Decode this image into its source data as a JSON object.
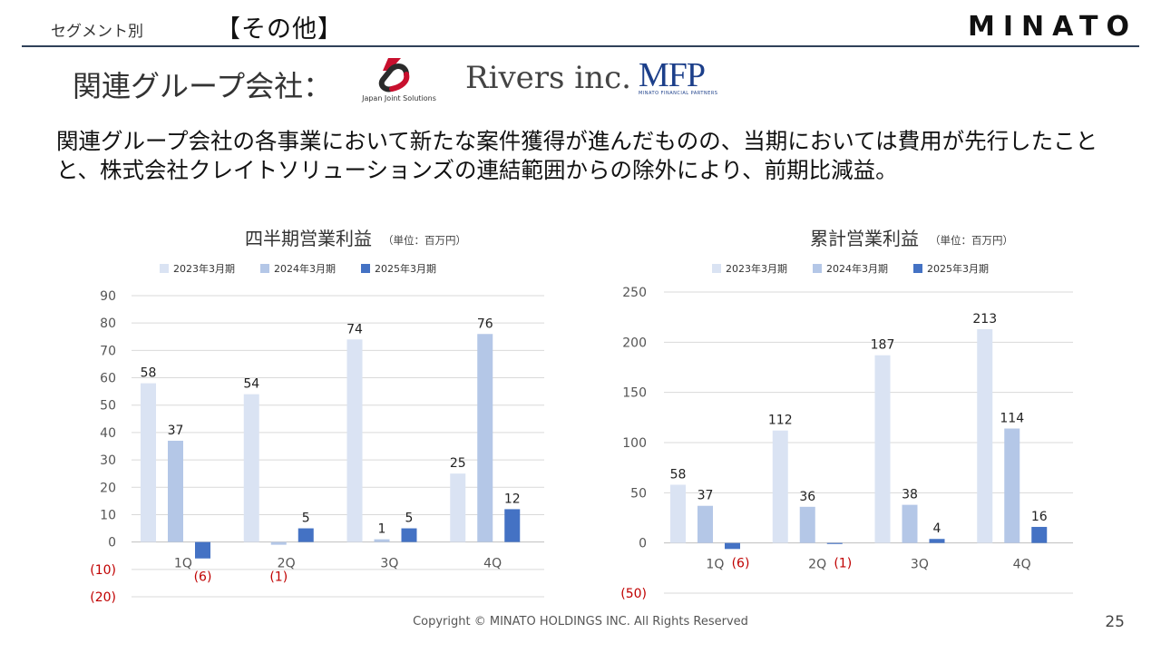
{
  "header": {
    "segment_label": "セグメント別",
    "section_title": "【その他】",
    "brand": "MINATO"
  },
  "group": {
    "label": "関連グループ会社：",
    "logos": {
      "jjs": "Japan Joint Solutions",
      "rivers": "Rivers inc.",
      "mfp_mark": "MFP",
      "mfp_sub": "MINATO FINANCIAL PARTNERS"
    }
  },
  "description": "関連グループ会社の各事業において新たな案件獲得が進んだものの、当期においては費用が先行したことと、株式会社クレイトソリューションズの連結範囲からの除外により、前期比減益。",
  "footer": {
    "copyright": "Copyright © MINATO HOLDINGS INC. All Rights Reserved",
    "page": "25"
  },
  "chart_data": [
    {
      "id": "quarterly",
      "type": "bar",
      "title": "四半期営業利益",
      "unit": "（単位：百万円）",
      "categories": [
        "1Q",
        "2Q",
        "3Q",
        "4Q"
      ],
      "series": [
        {
          "name": "2023年3月期",
          "color": "#dae3f3",
          "values": [
            58,
            54,
            74,
            25
          ]
        },
        {
          "name": "2024年3月期",
          "color": "#b4c7e7",
          "values": [
            37,
            -1,
            1,
            76
          ]
        },
        {
          "name": "2025年3月期",
          "color": "#4472c4",
          "values": [
            -6,
            5,
            5,
            12
          ]
        }
      ],
      "data_labels": [
        [
          "58",
          "54",
          "74",
          "25"
        ],
        [
          "37",
          "(1)",
          "1",
          "76"
        ],
        [
          "(6)",
          "5",
          "5",
          "12"
        ]
      ],
      "ylim": [
        -20,
        90
      ],
      "yticks": [
        90,
        80,
        70,
        60,
        50,
        40,
        30,
        20,
        10,
        0,
        -10,
        -20
      ],
      "ytick_labels": [
        "90",
        "80",
        "70",
        "60",
        "50",
        "40",
        "30",
        "20",
        "10",
        "0",
        "(10)",
        "(20)"
      ],
      "grid": true,
      "legend": "top"
    },
    {
      "id": "cumulative",
      "type": "bar",
      "title": "累計営業利益",
      "unit": "（単位：百万円）",
      "categories": [
        "1Q",
        "2Q",
        "3Q",
        "4Q"
      ],
      "series": [
        {
          "name": "2023年3月期",
          "color": "#dae3f3",
          "values": [
            58,
            112,
            187,
            213
          ]
        },
        {
          "name": "2024年3月期",
          "color": "#b4c7e7",
          "values": [
            37,
            36,
            38,
            114
          ]
        },
        {
          "name": "2025年3月期",
          "color": "#4472c4",
          "values": [
            -6,
            -1,
            4,
            16
          ]
        }
      ],
      "data_labels": [
        [
          "58",
          "112",
          "187",
          "213"
        ],
        [
          "37",
          "36",
          "38",
          "114"
        ],
        [
          "(6)",
          "(1)",
          "4",
          "16"
        ]
      ],
      "ylim": [
        -50,
        250
      ],
      "yticks": [
        250,
        200,
        150,
        100,
        50,
        0,
        -50
      ],
      "ytick_labels": [
        "250",
        "200",
        "150",
        "100",
        "50",
        "0",
        "(50)"
      ],
      "grid": true,
      "legend": "top"
    }
  ]
}
